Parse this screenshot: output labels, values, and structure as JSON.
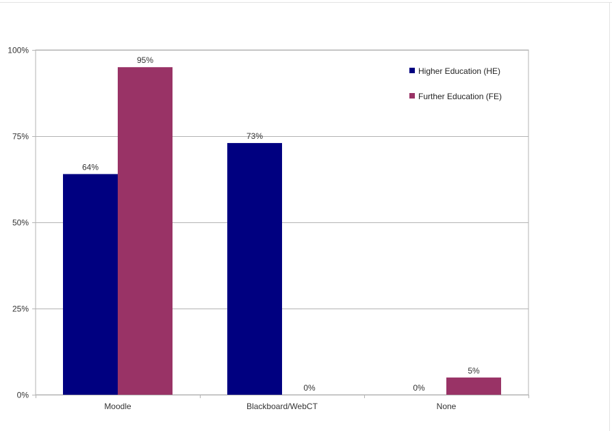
{
  "chart_data": {
    "type": "bar",
    "categories": [
      "Moodle",
      "Blackboard/WebCT",
      "None"
    ],
    "series": [
      {
        "name": "Higher Education (HE)",
        "values": [
          64,
          73,
          0
        ],
        "labels": [
          "64%",
          "73%",
          "0%"
        ],
        "color": "#000080"
      },
      {
        "name": "Further Education (FE)",
        "values": [
          95,
          0,
          5
        ],
        "labels": [
          "95%",
          "0%",
          "5%"
        ],
        "color": "#993366"
      }
    ],
    "ylim": [
      0,
      100
    ],
    "yticks": [
      0,
      25,
      50,
      75,
      100
    ],
    "ytick_labels": [
      "0%",
      "25%",
      "50%",
      "75%",
      "100%"
    ],
    "grid": true,
    "legend": "top-right",
    "title": "",
    "xlabel": "",
    "ylabel": ""
  }
}
